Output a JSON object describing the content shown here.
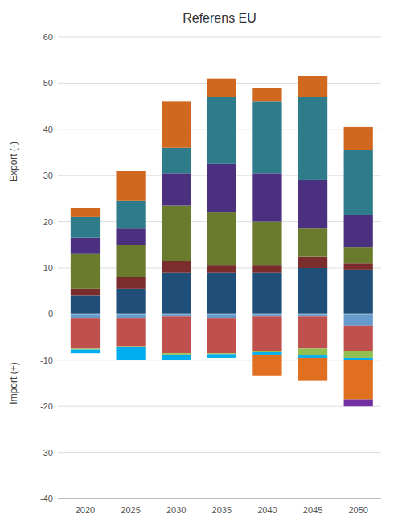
{
  "chart_data": {
    "type": "bar",
    "stacked": true,
    "title": "Referens EU",
    "ylabels": [
      "Export (-)",
      "Import (+)"
    ],
    "x": [
      2020,
      2025,
      2030,
      2035,
      2040,
      2045,
      2050
    ],
    "xlim": [
      2017.0,
      2052.5
    ],
    "xticks": [
      2020,
      2025,
      2030,
      2035,
      2040,
      2045,
      2050
    ],
    "ylim": [
      -40,
      60
    ],
    "yticks": [
      -40,
      -30,
      -20,
      -10,
      0,
      10,
      20,
      30,
      40,
      50,
      60
    ],
    "grid": true,
    "series": [
      {
        "color": "#1F4E79",
        "values": [
          4.0,
          5.5,
          9.0,
          9.0,
          9.0,
          10.0,
          9.5
        ]
      },
      {
        "color": "#7B2D2D",
        "values": [
          1.5,
          2.5,
          2.5,
          1.5,
          1.5,
          2.5,
          1.5
        ]
      },
      {
        "color": "#6B7B2D",
        "values": [
          7.5,
          7.0,
          12.0,
          11.5,
          9.5,
          6.0,
          3.5
        ]
      },
      {
        "color": "#4B3080",
        "values": [
          3.5,
          3.5,
          7.0,
          10.5,
          10.5,
          10.5,
          7.0
        ]
      },
      {
        "color": "#2E7B8A",
        "values": [
          4.5,
          6.0,
          5.5,
          14.5,
          15.5,
          18.0,
          14.0
        ]
      },
      {
        "color": "#D06820",
        "values": [
          2.0,
          6.5,
          10.0,
          4.0,
          3.0,
          4.5,
          5.0
        ]
      },
      {
        "color": "#6699CC",
        "values": [
          -1.0,
          -1.0,
          -0.5,
          -1.0,
          -0.5,
          -0.5,
          -2.5
        ]
      },
      {
        "color": "#C0504D",
        "values": [
          -6.5,
          -6.0,
          -8.0,
          -7.5,
          -7.5,
          -7.0,
          -5.5
        ]
      },
      {
        "color": "#92C050",
        "values": [
          -0.2,
          -0.1,
          -0.3,
          -0.2,
          -0.3,
          -1.5,
          -1.5
        ]
      },
      {
        "color": "#00AEEF",
        "values": [
          -0.8,
          -2.8,
          -1.2,
          -0.8,
          -0.5,
          -0.5,
          -0.5
        ]
      },
      {
        "color": "#E07020",
        "values": [
          0.0,
          0.0,
          0.0,
          0.0,
          -4.5,
          -5.0,
          -8.5
        ]
      },
      {
        "color": "#7030A0",
        "values": [
          0.0,
          0.0,
          0.0,
          0.0,
          0.0,
          0.0,
          -1.5
        ]
      }
    ]
  }
}
